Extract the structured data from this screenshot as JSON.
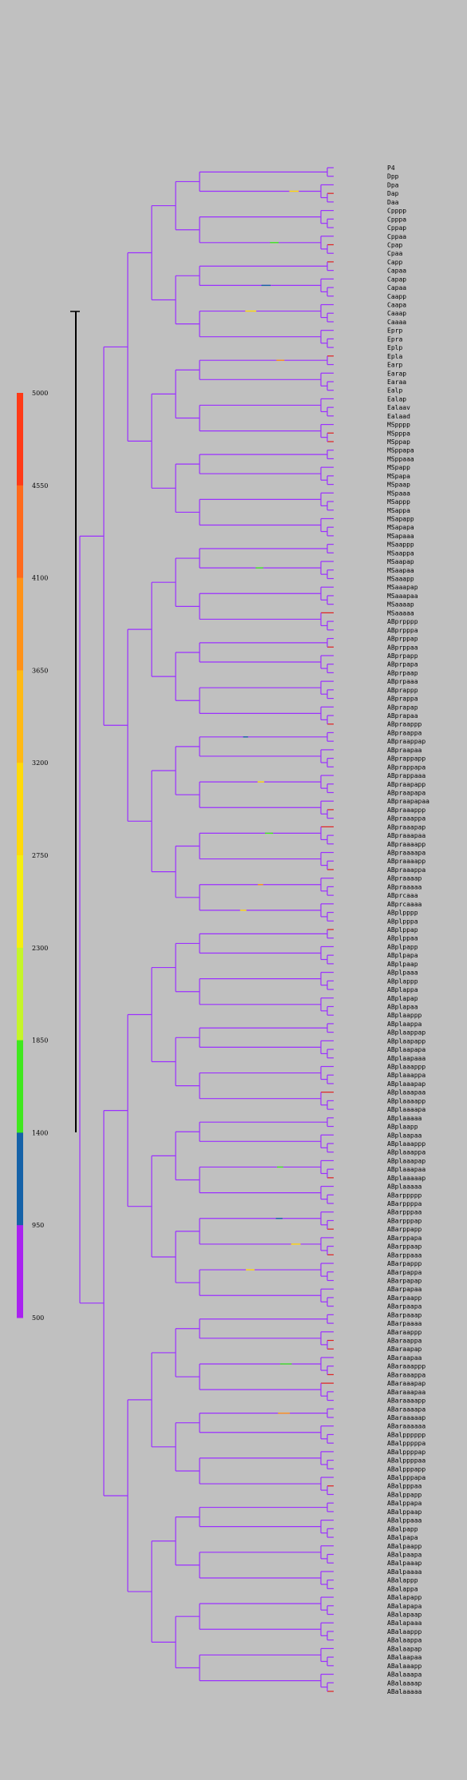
{
  "colorbar": {
    "ticks": [
      "5000",
      "4550",
      "4100",
      "3650",
      "3200",
      "2750",
      "2300",
      "1850",
      "1400",
      "950",
      "500"
    ],
    "bands": [
      "#ff3a17",
      "#ff6a1c",
      "#ff9218",
      "#ffb914",
      "#ffd90a",
      "#f5ee10",
      "#c5f52a",
      "#3fe81e",
      "#1562a8",
      "#aa22f0"
    ]
  },
  "tree": {
    "main_color": "#9b30ff",
    "hot_color": "#e02020",
    "leaves": [
      "P4",
      "Dpp",
      "Dpa",
      "Dap",
      "Daa",
      "Cpppp",
      "Cpppa",
      "Cppap",
      "Cppaa",
      "Cpap",
      "Cpaa",
      "Capp",
      "Capaa",
      "Capap",
      "Capaa",
      "Caapp",
      "Caapa",
      "Caaap",
      "Caaaa",
      "Eprp",
      "Epra",
      "Eplp",
      "Epla",
      "Earp",
      "Earap",
      "Earaa",
      "Ealp",
      "Ealap",
      "Ealaav",
      "Ealaad",
      "MSpppp",
      "MSpppa",
      "MSppap",
      "MSppapa",
      "MSppaaa",
      "MSpapp",
      "MSpapa",
      "MSpaap",
      "MSpaaa",
      "MSappp",
      "MSappa",
      "MSapapp",
      "MSapapa",
      "MSapaaa",
      "MSaappp",
      "MSaappa",
      "MSaapap",
      "MSaapaa",
      "MSaaapp",
      "MSaaapap",
      "MSaaapaa",
      "MSaaaap",
      "MSaaaaa",
      "ABprpppp",
      "ABprpppa",
      "ABprppap",
      "ABprppaa",
      "ABprpapp",
      "ABprpapa",
      "ABprpaap",
      "ABprpaaa",
      "ABprappp",
      "ABprappa",
      "ABprapap",
      "ABprapaa",
      "ABpraappp",
      "ABpraappa",
      "ABpraappap",
      "ABpraapaa",
      "ABprappapp",
      "ABprappapa",
      "ABprappaaa",
      "ABpraapapp",
      "ABpraapapa",
      "ABpraapapaa",
      "ABpraaappp",
      "ABpraaappa",
      "ABpraaapap",
      "ABpraaapaa",
      "ABpraaaapp",
      "ABpraaaapa",
      "ABpraaaapp",
      "ABpraaappa",
      "ABpraaaap",
      "ABpraaaaa",
      "ABprcaaa",
      "ABprcaaaa",
      "ABplpppp",
      "ABplpppa",
      "ABplppap",
      "ABplppaa",
      "ABplpapp",
      "ABplpapa",
      "ABplpaap",
      "ABplpaaa",
      "ABplappp",
      "ABplappa",
      "ABplapap",
      "ABplapaa",
      "ABplaappp",
      "ABplaappa",
      "ABplaappap",
      "ABplaapapp",
      "ABplaapapa",
      "ABplaapaaa",
      "ABplaaappp",
      "ABplaaappa",
      "ABplaaapap",
      "ABplaaapaa",
      "ABplaaaapp",
      "ABplaaaapa",
      "ABplaaaaa",
      "ABplaapp",
      "ABplaapaa",
      "ABplaaappp",
      "ABplaaappa",
      "ABplaaapap",
      "ABplaaapaa",
      "ABplaaaaap",
      "ABplaaaaa",
      "ABarppppp",
      "ABarppppa",
      "ABarpppaa",
      "ABarpppap",
      "ABarppapp",
      "ABarppapa",
      "ABarppaap",
      "ABarppaaa",
      "ABarpappp",
      "ABarpappa",
      "ABarpapap",
      "ABarpapaa",
      "ABarpaapp",
      "ABarpaapa",
      "ABarpaaap",
      "ABarpaaaa",
      "ABaraappp",
      "ABaraappa",
      "ABaraapap",
      "ABaraapaa",
      "ABaraaappp",
      "ABaraaappa",
      "ABaraaapap",
      "ABaraaapaa",
      "ABaraaaapp",
      "ABaraaaapa",
      "ABaraaaaap",
      "ABaraaaaaa",
      "ABalpppppp",
      "ABalpppppa",
      "ABalppppap",
      "ABalppppaa",
      "ABalpppapp",
      "ABalpppapa",
      "ABalpppaa",
      "ABalppapp",
      "ABalppapa",
      "ABalppaap",
      "ABalppaaa",
      "ABalpapp",
      "ABalpapa",
      "ABalpaapp",
      "ABalpaapa",
      "ABalpaaap",
      "ABalpaaaa",
      "ABalappp",
      "ABalappa",
      "ABalapapp",
      "ABalapapa",
      "ABalapaap",
      "ABalapaaa",
      "ABalaappp",
      "ABalaappa",
      "ABalaapap",
      "ABalaapaa",
      "ABalaaapp",
      "ABalaaapa",
      "ABalaaaap",
      "ABalaaaaa"
    ]
  }
}
